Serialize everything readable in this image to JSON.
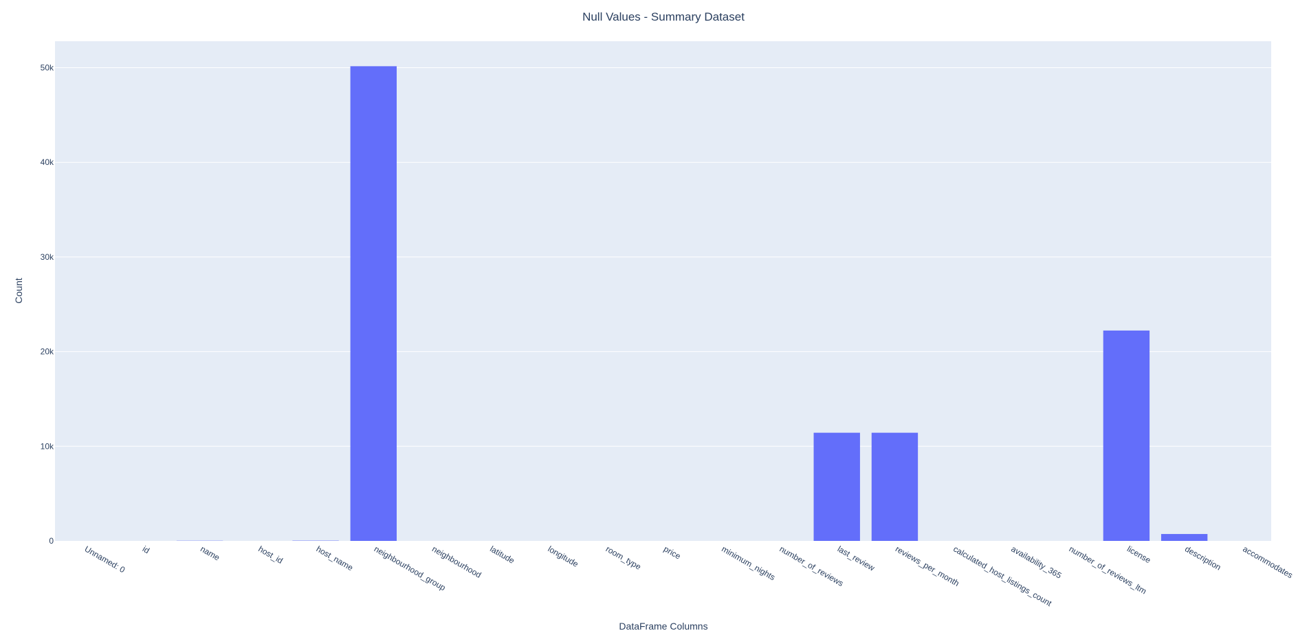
{
  "chart_data": {
    "type": "bar",
    "title": "Null Values - Summary Dataset",
    "xlabel": "DataFrame Columns",
    "ylabel": "Count",
    "ylim": [
      0,
      52800
    ],
    "yticks": [
      0,
      10000,
      20000,
      30000,
      40000,
      50000
    ],
    "ytick_labels": [
      "0",
      "10k",
      "20k",
      "30k",
      "40k",
      "50k"
    ],
    "grid": true,
    "legend": "none",
    "colors": {
      "bar": "#636efa",
      "plot_background": "#e5ecf6",
      "grid": "#ffffff",
      "text": "#2a3f5f"
    },
    "categories": [
      "Unnamed: 0",
      "id",
      "name",
      "host_id",
      "host_name",
      "neighbourhood_group",
      "neighbourhood",
      "latitude",
      "longitude",
      "room_type",
      "price",
      "minimum_nights",
      "number_of_reviews",
      "last_review",
      "reviews_per_month",
      "calculated_host_listings_count",
      "availability_365",
      "number_of_reviews_ltm",
      "license",
      "description",
      "accommodates"
    ],
    "values": [
      0,
      0,
      20,
      0,
      30,
      50160,
      0,
      0,
      0,
      0,
      0,
      0,
      0,
      11430,
      11430,
      0,
      0,
      0,
      22230,
      730,
      0
    ]
  }
}
